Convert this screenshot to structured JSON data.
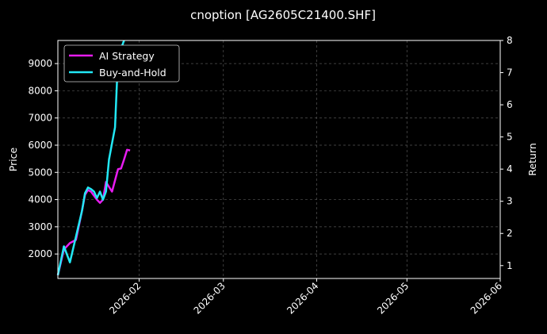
{
  "chart_data": {
    "type": "line",
    "title": "cnoption [AG2605C21400.SHF]",
    "xlabel": "",
    "ylabel": "Price",
    "y2label": "Return",
    "x_ticks": [
      "2026-02",
      "2026-03",
      "2026-04",
      "2026-05",
      "2026-06"
    ],
    "x_tick_dates": [
      "2026-02-01",
      "2026-03-01",
      "2026-04-01",
      "2026-05-01",
      "2026-06-01"
    ],
    "xlim": [
      "2026-01-05",
      "2026-06-01"
    ],
    "ylim": [
      1100,
      9850
    ],
    "y_ticks": [
      2000,
      3000,
      4000,
      5000,
      6000,
      7000,
      8000,
      9000
    ],
    "y2lim": [
      0.6,
      8.0
    ],
    "y2_ticks": [
      1,
      2,
      3,
      4,
      5,
      6,
      7,
      8
    ],
    "grid": true,
    "legend_position": "top-left",
    "colors": {
      "background": "#000000",
      "ai_strategy": "#e81cf0",
      "buy_and_hold": "#22e8f5"
    },
    "series": [
      {
        "name": "AI Strategy",
        "axis": "right",
        "color": "#e81cf0",
        "x": [
          "2026-01-05",
          "2026-01-07",
          "2026-01-09",
          "2026-01-11",
          "2026-01-13",
          "2026-01-14",
          "2026-01-15",
          "2026-01-16",
          "2026-01-18",
          "2026-01-19",
          "2026-01-20",
          "2026-01-21",
          "2026-01-22",
          "2026-01-23",
          "2026-01-25",
          "2026-01-26",
          "2026-01-27",
          "2026-01-28",
          "2026-01-29"
        ],
        "values": [
          0.7,
          1.5,
          1.7,
          1.8,
          2.7,
          3.2,
          3.35,
          3.3,
          3.05,
          2.95,
          3.05,
          3.6,
          3.45,
          3.3,
          4.0,
          4.02,
          4.3,
          4.6,
          4.58
        ]
      },
      {
        "name": "Buy-and-Hold",
        "axis": "right",
        "color": "#22e8f5",
        "x": [
          "2026-01-05",
          "2026-01-07",
          "2026-01-09",
          "2026-01-11",
          "2026-01-13",
          "2026-01-14",
          "2026-01-15",
          "2026-01-16",
          "2026-01-17",
          "2026-01-18",
          "2026-01-19",
          "2026-01-20",
          "2026-01-21",
          "2026-01-22",
          "2026-01-23",
          "2026-01-24",
          "2026-01-25",
          "2026-01-27"
        ],
        "values": [
          0.7,
          1.6,
          1.1,
          1.9,
          2.7,
          3.25,
          3.43,
          3.38,
          3.3,
          3.1,
          3.3,
          3.05,
          3.3,
          4.3,
          4.8,
          5.3,
          7.5,
          8.0
        ]
      }
    ]
  }
}
